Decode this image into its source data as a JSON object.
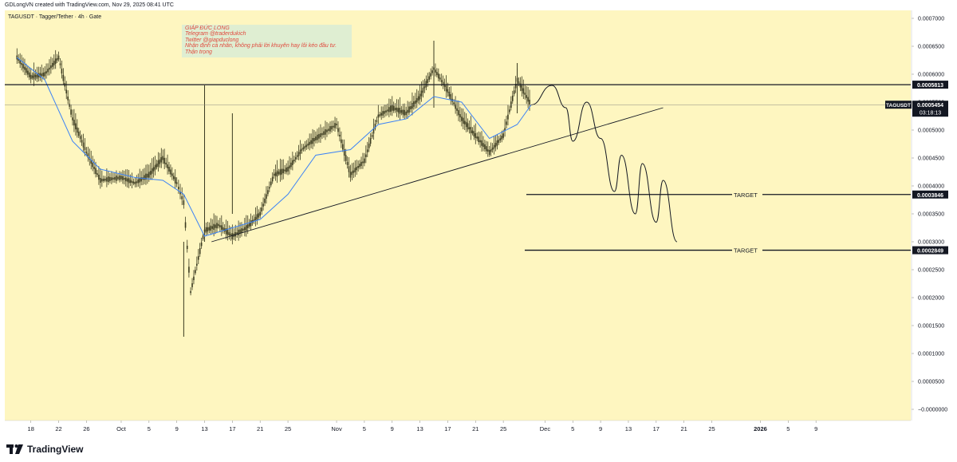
{
  "header": {
    "credit": "GDLongVN created with TradingView.com, Nov 29, 2025 08:41 UTC"
  },
  "footer": {
    "brand": "TradingView",
    "logo_icon": "tradingview-logo-icon"
  },
  "note": {
    "lines": [
      "GIÁP ĐỨC LONG",
      "Telegram @traderdukich",
      "Twitter @giapduclong",
      "Nhận định cá nhân, không phải lời khuyên hay lôi kéo đầu tư.",
      "Thận trọng"
    ]
  },
  "colors": {
    "background": "#fef6c0",
    "candle": "#3a3a1f",
    "ma_line": "#3b82f6",
    "annotation": "#131722",
    "price_label_bg": "#131722",
    "note_bg": "#dfeed2",
    "note_text": "#e0493d"
  },
  "chart_data": {
    "type": "line",
    "title": "TAGUSDT · Tagger/Tether · 4h · Gate",
    "symbol": "TAGUSDT",
    "ylim": [
      -2e-05,
      0.00073
    ],
    "grid": false,
    "y_ticks": [
      "0.0007000",
      "0.0006500",
      "0.0006000",
      "0.0005500",
      "0.0005000",
      "0.0004500",
      "0.0004000",
      "0.0003500",
      "0.0003000",
      "0.0002500",
      "0.0002000",
      "0.0001500",
      "0.0001000",
      "0.0000500",
      "−0.0000000"
    ],
    "x_ticks": [
      "18",
      "22",
      "26",
      "Oct",
      "5",
      "9",
      "13",
      "17",
      "21",
      "25",
      "Nov",
      "5",
      "9",
      "13",
      "17",
      "21",
      "25",
      "Dec",
      "5",
      "9",
      "13",
      "17",
      "21",
      "25",
      "2026",
      "5",
      "9"
    ],
    "x_tick_bold": [
      "2026"
    ],
    "last_price": {
      "label": "TAGUSDT",
      "value": "0.0005454",
      "countdown": "03:18:13",
      "price": 0.0005454
    },
    "levels": [
      {
        "name": "resistance",
        "value": "0.0005813",
        "price": 0.0005813,
        "text": ""
      },
      {
        "name": "target-1",
        "value": "0.0003846",
        "price": 0.0003846,
        "text": "TARGET"
      },
      {
        "name": "target-2",
        "value": "0.0002849",
        "price": 0.0002849,
        "text": "TARGET"
      }
    ],
    "price_series": {
      "name": "",
      "x": [
        "Sep 16",
        "Sep 18",
        "Sep 20",
        "Sep 22",
        "Sep 24",
        "Sep 26",
        "Sep 28",
        "Oct 1",
        "Oct 3",
        "Oct 5",
        "Oct 7",
        "Oct 9",
        "Oct 10",
        "Oct 11",
        "Oct 13",
        "Oct 15",
        "Oct 17",
        "Oct 19",
        "Oct 21",
        "Oct 23",
        "Oct 25",
        "Oct 27",
        "Oct 29",
        "Nov 1",
        "Nov 3",
        "Nov 5",
        "Nov 7",
        "Nov 9",
        "Nov 11",
        "Nov 13",
        "Nov 15",
        "Nov 17",
        "Nov 19",
        "Nov 21",
        "Nov 23",
        "Nov 25",
        "Nov 27",
        "Nov 29"
      ],
      "y": [
        0.00063,
        0.000595,
        0.0006,
        0.00063,
        0.00052,
        0.00046,
        0.00041,
        0.000415,
        0.000405,
        0.00042,
        0.00045,
        0.000405,
        0.00037,
        0.00021,
        0.00032,
        0.00033,
        0.00031,
        0.000325,
        0.00035,
        0.00042,
        0.00043,
        0.000465,
        0.000485,
        0.00051,
        0.00042,
        0.000445,
        0.000525,
        0.00054,
        0.00053,
        0.00056,
        0.00061,
        0.00057,
        0.00052,
        0.00049,
        0.00046,
        0.00049,
        0.00059,
        0.000545
      ]
    },
    "ma_series": {
      "name": "",
      "x": [
        "Sep 16",
        "Sep 20",
        "Sep 24",
        "Sep 28",
        "Oct 3",
        "Oct 7",
        "Oct 10",
        "Oct 13",
        "Oct 17",
        "Oct 21",
        "Oct 25",
        "Oct 29",
        "Nov 3",
        "Nov 7",
        "Nov 11",
        "Nov 15",
        "Nov 19",
        "Nov 23",
        "Nov 27",
        "Nov 29"
      ],
      "y": [
        0.00063,
        0.00059,
        0.00048,
        0.00043,
        0.000415,
        0.00041,
        0.000385,
        0.00031,
        0.000325,
        0.00034,
        0.000385,
        0.000455,
        0.000465,
        0.00051,
        0.00052,
        0.00056,
        0.00055,
        0.000485,
        0.00051,
        0.000545
      ]
    },
    "trendline": {
      "x": [
        "Oct 14",
        "Dec 18"
      ],
      "y": [
        0.0003,
        0.00054
      ]
    },
    "projection": {
      "x": [
        "Nov 29",
        "Dec 2",
        "Dec 4",
        "Dec 5",
        "Dec 7",
        "Dec 9",
        "Dec 11",
        "Dec 12",
        "Dec 14",
        "Dec 15",
        "Dec 17",
        "Dec 18",
        "Dec 20"
      ],
      "y": [
        0.000545,
        0.00058,
        0.00054,
        0.00048,
        0.00055,
        0.000485,
        0.00039,
        0.000455,
        0.00035,
        0.00044,
        0.000335,
        0.00041,
        0.0003
      ]
    }
  }
}
